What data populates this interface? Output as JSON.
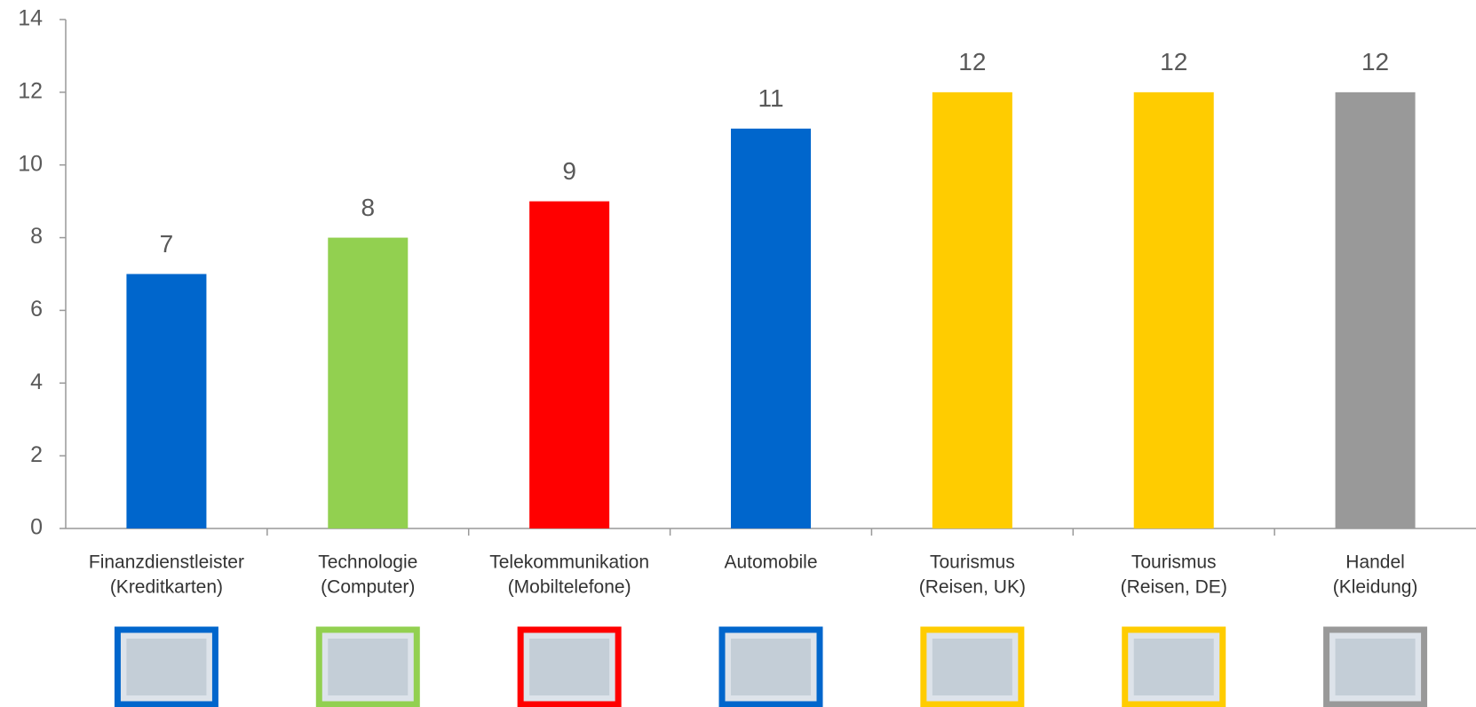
{
  "chart_data": {
    "type": "bar",
    "categories": [
      [
        "Finanzdienstleister",
        "(Kreditkarten)"
      ],
      [
        "Technologie",
        "(Computer)"
      ],
      [
        "Telekommunikation",
        "(Mobiltelefone)"
      ],
      [
        "Automobile"
      ],
      [
        "Tourismus",
        "(Reisen, UK)"
      ],
      [
        "Tourismus",
        "(Reisen, DE)"
      ],
      [
        "Handel",
        "(Kleidung)"
      ]
    ],
    "values": [
      7,
      8,
      9,
      11,
      12,
      12,
      12
    ],
    "colors": [
      "#0066cc",
      "#92d050",
      "#ff0000",
      "#0066cc",
      "#ffcc00",
      "#ffcc00",
      "#999999"
    ],
    "ylim": [
      0,
      14
    ],
    "yticks": [
      0,
      2,
      4,
      6,
      8,
      10,
      12,
      14
    ],
    "grid": false
  }
}
